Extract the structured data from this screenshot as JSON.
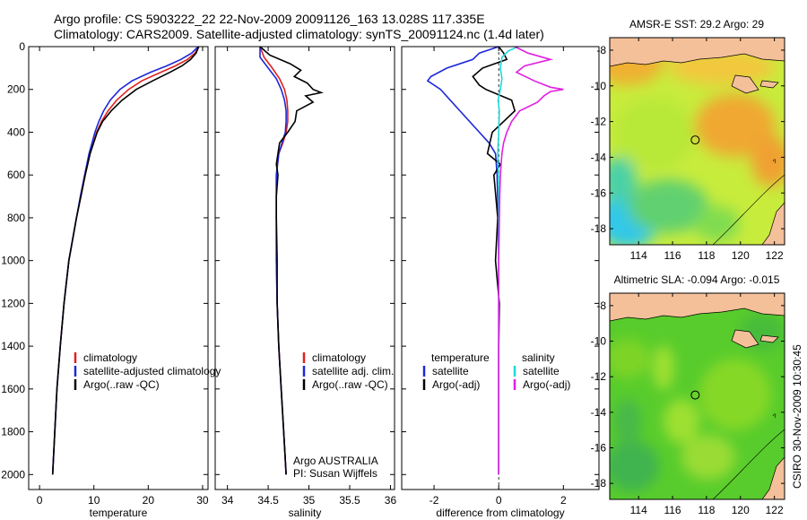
{
  "header": {
    "line1": "Argo profile: CS 5903222_22 22-Nov-2009 20091126_163 13.028S 117.335E",
    "line2": "Climatology: CARS2009. Satellite-adjusted climatology: synTS_20091124.nc (1.4d later)"
  },
  "side_stamp": "CSIRO 30-Nov-2009 10:30:45",
  "colors": {
    "red": "#e0201c",
    "blue": "#1c28d8",
    "black": "#000000",
    "cyan": "#20d8d8",
    "magenta": "#e020e0",
    "land": "#f4c09a"
  },
  "chart_data": [
    {
      "id": "temperature",
      "type": "line",
      "xlabel": "temperature",
      "ylabel": "",
      "xlim": [
        -2,
        31
      ],
      "ylim": [
        2070,
        0
      ],
      "xticks": [
        0,
        10,
        20,
        30
      ],
      "yticks": [
        0,
        200,
        400,
        600,
        800,
        1000,
        1200,
        1400,
        1600,
        1800,
        2000
      ],
      "legend": {
        "position": "lower-left",
        "entries": [
          "climatology",
          "satellite-adjusted climatology",
          "Argo(..raw -QC)"
        ]
      },
      "series": [
        {
          "name": "climatology",
          "color": "red",
          "depth": [
            0,
            30,
            60,
            90,
            120,
            160,
            200,
            250,
            300,
            350,
            400,
            500,
            600,
            700,
            800,
            1000,
            1200,
            1400,
            1600,
            1800,
            2000
          ],
          "values": [
            29.3,
            28.6,
            27.2,
            25,
            22.3,
            18.8,
            16.4,
            14.2,
            12.6,
            11.4,
            10.5,
            9.3,
            8.4,
            7.6,
            6.8,
            5.4,
            4.5,
            3.8,
            3.2,
            2.8,
            2.4
          ]
        },
        {
          "name": "satellite-adjusted climatology",
          "color": "blue",
          "depth": [
            0,
            30,
            60,
            90,
            120,
            160,
            200,
            250,
            300,
            350,
            400,
            500,
            600,
            700,
            800,
            1000,
            1200,
            1400,
            1600,
            1800,
            2000
          ],
          "values": [
            29.2,
            28,
            26,
            23.4,
            20.4,
            17,
            14.8,
            13,
            11.8,
            10.9,
            10.2,
            9.1,
            8.3,
            7.5,
            6.8,
            5.4,
            4.5,
            3.8,
            3.2,
            2.8,
            2.4
          ]
        },
        {
          "name": "Argo(..raw -QC)",
          "color": "black",
          "depth": [
            0,
            30,
            60,
            90,
            120,
            160,
            200,
            250,
            300,
            350,
            400,
            500,
            600,
            700,
            800,
            1000,
            1200,
            1400,
            1600,
            1800,
            2000
          ],
          "values": [
            29.3,
            28.8,
            27.8,
            26.2,
            24,
            20.8,
            17.8,
            15.2,
            13.2,
            11.6,
            10.6,
            9.3,
            8.4,
            7.6,
            6.8,
            5.4,
            4.5,
            3.8,
            3.2,
            2.8,
            2.4
          ]
        }
      ]
    },
    {
      "id": "salinity",
      "type": "line",
      "xlabel": "salinity",
      "ylabel": "",
      "xlim": [
        33.85,
        36.05
      ],
      "ylim": [
        2070,
        0
      ],
      "xticks": [
        34,
        34.5,
        35,
        35.5,
        36
      ],
      "yticks": [
        0,
        200,
        400,
        600,
        800,
        1000,
        1200,
        1400,
        1600,
        1800,
        2000
      ],
      "legend": {
        "position": "lower-left",
        "entries": [
          "climatology",
          "satellite adj. clim.",
          "Argo(..raw -QC)"
        ]
      },
      "annotation": [
        "Argo AUSTRALIA",
        "PI: Susan Wijffels"
      ],
      "series": [
        {
          "name": "climatology",
          "color": "red",
          "depth": [
            0,
            50,
            100,
            150,
            200,
            250,
            300,
            350,
            400,
            450,
            500,
            600,
            700,
            800,
            1000,
            1200,
            1400,
            1600,
            1800,
            2000
          ],
          "values": [
            34.4,
            34.45,
            34.55,
            34.64,
            34.7,
            34.73,
            34.74,
            34.74,
            34.72,
            34.68,
            34.63,
            34.6,
            34.6,
            34.6,
            34.6,
            34.61,
            34.63,
            34.66,
            34.69,
            34.72
          ]
        },
        {
          "name": "satellite adj. clim.",
          "color": "blue",
          "depth": [
            0,
            50,
            100,
            150,
            200,
            250,
            300,
            350,
            400,
            450,
            500,
            600,
            700,
            800,
            1000,
            1200,
            1400,
            1600,
            1800,
            2000
          ],
          "values": [
            34.4,
            34.4,
            34.5,
            34.6,
            34.66,
            34.7,
            34.72,
            34.72,
            34.71,
            34.67,
            34.63,
            34.6,
            34.6,
            34.6,
            34.6,
            34.61,
            34.63,
            34.66,
            34.69,
            34.72
          ]
        },
        {
          "name": "Argo(..raw -QC)",
          "color": "black",
          "depth": [
            0,
            40,
            80,
            110,
            140,
            170,
            200,
            215,
            230,
            260,
            300,
            350,
            400,
            450,
            500,
            550,
            600,
            700,
            800,
            1000,
            1200,
            1400,
            1600,
            1800,
            2000
          ],
          "values": [
            34.4,
            34.52,
            34.77,
            34.9,
            34.82,
            34.98,
            35.05,
            35.15,
            34.96,
            35.05,
            34.85,
            34.83,
            34.74,
            34.64,
            34.62,
            34.6,
            34.62,
            34.6,
            34.6,
            34.61,
            34.61,
            34.63,
            34.66,
            34.69,
            34.72
          ]
        }
      ]
    },
    {
      "id": "difference",
      "type": "line",
      "xlabel": "difference from climatology",
      "ylabel": "",
      "xlim": [
        -3,
        3.1
      ],
      "ylim": [
        2070,
        0
      ],
      "xticks": [
        -2,
        0,
        2
      ],
      "yticks": [
        0,
        200,
        400,
        600,
        800,
        1000,
        1200,
        1400,
        1600,
        1800,
        2000
      ],
      "legend": {
        "position": "lower-middle",
        "header_left": "temperature",
        "header_right": "salinity",
        "entries": [
          "satellite",
          "Argo(-adj)",
          "satellite",
          "Argo(-adj)"
        ]
      },
      "series": [
        {
          "name": "temperature satellite",
          "color": "blue",
          "depth": [
            0,
            30,
            60,
            100,
            140,
            160,
            200,
            300,
            400,
            450,
            500,
            600,
            800,
            1000,
            1400,
            2000
          ],
          "values": [
            0,
            -0.6,
            -0.8,
            -1.6,
            -2.1,
            -2.2,
            -1.8,
            -1.2,
            -0.6,
            -0.3,
            -0.1,
            -0.05,
            -0.02,
            0,
            0,
            0
          ]
        },
        {
          "name": "temperature Argo(-adj)",
          "color": "black",
          "depth": [
            0,
            30,
            60,
            100,
            140,
            180,
            200,
            250,
            300,
            400,
            500,
            550,
            600,
            800,
            1000,
            1200,
            1400,
            2000
          ],
          "values": [
            0,
            0.15,
            0.25,
            -0.5,
            -0.8,
            -0.6,
            -0.4,
            0.4,
            0.5,
            -0.2,
            -0.35,
            0.05,
            -0.15,
            -0.03,
            -0.1,
            0.02,
            0,
            0
          ]
        },
        {
          "name": "salinity satellite",
          "color": "cyan",
          "depth": [
            0,
            20,
            50,
            100,
            150,
            200,
            250,
            300,
            400,
            500,
            700,
            1000,
            1400,
            2000
          ],
          "values": [
            0.6,
            0.3,
            0.1,
            0.05,
            0.1,
            0.05,
            -0.02,
            0.02,
            0,
            -0.03,
            0,
            0,
            0,
            0
          ]
        },
        {
          "name": "salinity Argo(-adj)",
          "color": "magenta",
          "depth": [
            0,
            30,
            60,
            90,
            120,
            160,
            190,
            200,
            210,
            230,
            260,
            300,
            350,
            400,
            450,
            500,
            600,
            700,
            800,
            1000,
            1400,
            2000
          ],
          "values": [
            0.5,
            0.9,
            1.6,
            0.8,
            0.55,
            1.1,
            1.6,
            2,
            1.6,
            1.4,
            1.2,
            0.65,
            0.4,
            0.25,
            0.15,
            0.1,
            0.05,
            0.03,
            0.02,
            0,
            0,
            0
          ]
        }
      ]
    },
    {
      "id": "sst-map",
      "type": "heatmap",
      "title": "AMSR-E SST: 29.2 Argo: 29",
      "xlim": [
        112.3,
        122.6
      ],
      "ylim": [
        -18.9,
        -7.3
      ],
      "xticks": [
        114,
        116,
        118,
        120,
        122
      ],
      "yticks": [
        -8,
        -10,
        -12,
        -14,
        -16,
        -18
      ],
      "marker": {
        "lon": 117.335,
        "lat": -13.028
      }
    },
    {
      "id": "sla-map",
      "type": "heatmap",
      "title": "Altimetric SLA: -0.094 Argo: -0.015",
      "xlim": [
        112.3,
        122.6
      ],
      "ylim": [
        -18.9,
        -7.3
      ],
      "xticks": [
        114,
        116,
        118,
        120,
        122
      ],
      "yticks": [
        -8,
        -10,
        -12,
        -14,
        -16,
        -18
      ],
      "marker": {
        "lon": 117.335,
        "lat": -13.028
      }
    }
  ]
}
